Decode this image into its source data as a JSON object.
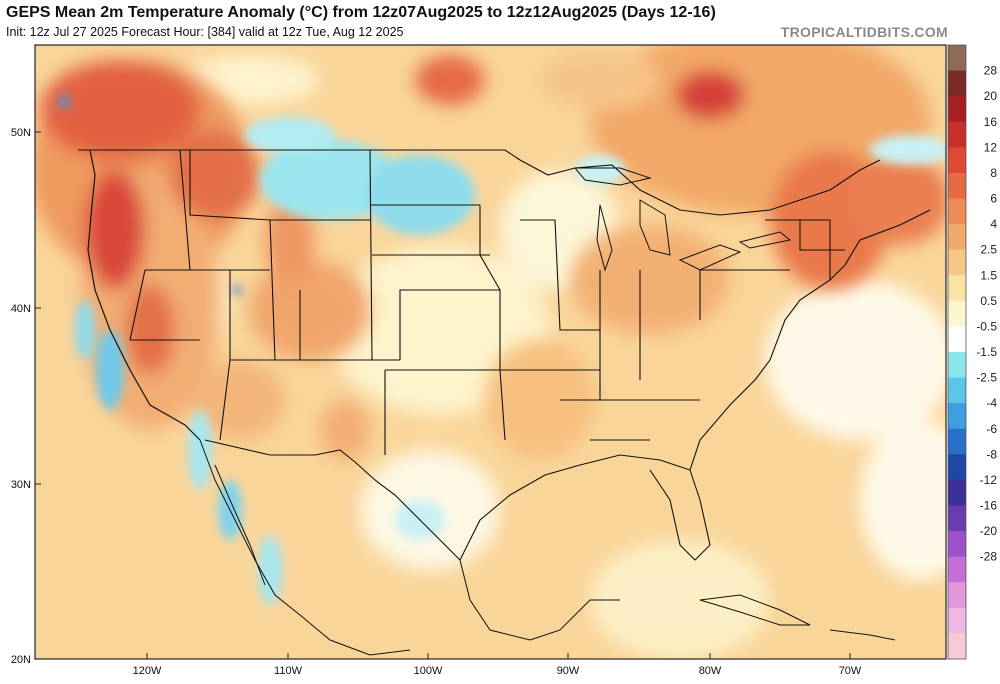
{
  "header": {
    "title": "GEPS Mean 2m Temperature Anomaly (°C) from 12z07Aug2025 to 12z12Aug2025 (Days 12-16)",
    "subtitle": "Init: 12z Jul 27 2025   Forecast Hour: [384]   valid at 12z Tue, Aug 12 2025",
    "brand": "TROPICALTIDBITS.COM"
  },
  "map": {
    "lat_labels": [
      "50N",
      "40N",
      "30N",
      "20N"
    ],
    "lon_labels": [
      "120W",
      "110W",
      "100W",
      "90W",
      "80W",
      "70W"
    ]
  },
  "colorbar": {
    "levels": [
      "28",
      "20",
      "16",
      "12",
      "8",
      "6",
      "4",
      "2.5",
      "1.5",
      "0.5",
      "-0.5",
      "-1.5",
      "-2.5",
      "-4",
      "-6",
      "-8",
      "-12",
      "-16",
      "-20",
      "-28"
    ],
    "colors": [
      "#8d6b57",
      "#7a2a22",
      "#a51f24",
      "#c8302b",
      "#dd4a34",
      "#e66a43",
      "#ec8b55",
      "#f1a86b",
      "#f6c787",
      "#fbe3a6",
      "#fdf6d0",
      "#ffffff",
      "#8be6ea",
      "#5cc6e8",
      "#3f9ee0",
      "#2b6fcc",
      "#1f47a8",
      "#3b2f97",
      "#6b3bb0",
      "#9b52c8",
      "#c46fd6",
      "#e297dd",
      "#efb7e3",
      "#f6cbd5"
    ]
  }
}
